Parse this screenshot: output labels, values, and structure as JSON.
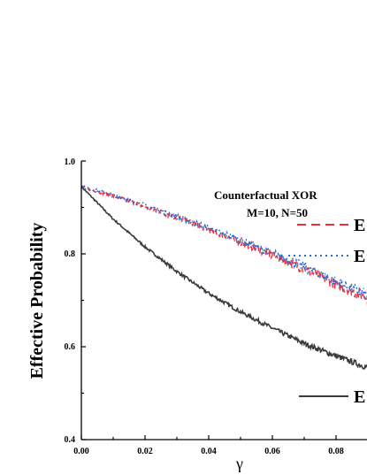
{
  "chart_data": {
    "type": "line",
    "title": "",
    "xlabel": "γ",
    "ylabel": "Effective Probability",
    "xlim": [
      0.0,
      0.09
    ],
    "ylim": [
      0.4,
      1.0
    ],
    "x_ticks": [
      "0.00",
      "0.02",
      "0.04",
      "0.06",
      "0.08"
    ],
    "y_ticks": [
      "0.4",
      "0.6",
      "0.8",
      "1.0"
    ],
    "annotation": [
      "Counterfactual XOR",
      "M=10, N=50"
    ],
    "legend_position": "right",
    "legend_labels": [
      "E",
      "E",
      "E"
    ],
    "series": [
      {
        "x": [
          0.0,
          0.01,
          0.02,
          0.03,
          0.04,
          0.05,
          0.06,
          0.07,
          0.08,
          0.09
        ],
        "y": [
          0.945,
          0.925,
          0.902,
          0.878,
          0.852,
          0.826,
          0.797,
          0.768,
          0.735,
          0.705
        ],
        "color": "#e8303a",
        "style": "dashed"
      },
      {
        "x": [
          0.0,
          0.01,
          0.02,
          0.03,
          0.04,
          0.05,
          0.06,
          0.07,
          0.08,
          0.09
        ],
        "y": [
          0.945,
          0.926,
          0.904,
          0.88,
          0.855,
          0.829,
          0.801,
          0.772,
          0.74,
          0.71
        ],
        "color": "#2a6fd6",
        "style": "dotted"
      },
      {
        "x": [
          0.0,
          0.01,
          0.02,
          0.03,
          0.04,
          0.05,
          0.06,
          0.07,
          0.08,
          0.09
        ],
        "y": [
          0.945,
          0.875,
          0.815,
          0.762,
          0.715,
          0.675,
          0.64,
          0.607,
          0.58,
          0.555
        ],
        "color": "#3a3a3a",
        "style": "solid"
      }
    ]
  }
}
